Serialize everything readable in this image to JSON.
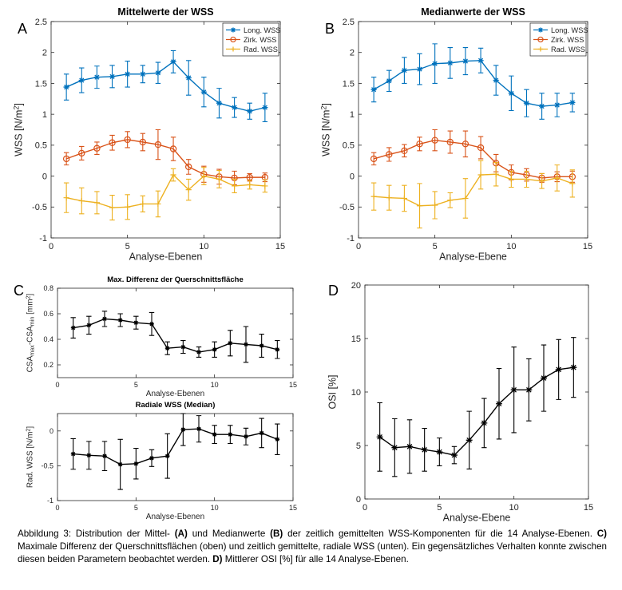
{
  "chart_data": [
    {
      "panel_letter": "A",
      "type": "line",
      "title": "Mittelwerte der WSS",
      "xlabel": "Analyse-Ebenen",
      "ylabel": "WSS [N/m²]",
      "xlim": [
        0,
        15
      ],
      "ylim": [
        -1,
        2.5
      ],
      "xticks": [
        0,
        5,
        10,
        15
      ],
      "yticks": [
        -1,
        -0.5,
        0,
        0.5,
        1,
        1.5,
        2,
        2.5
      ],
      "grid": false,
      "legend": "top-right",
      "x": [
        1,
        2,
        3,
        4,
        5,
        6,
        7,
        8,
        9,
        10,
        11,
        12,
        13,
        14
      ],
      "series": [
        {
          "name": "Long. WSS",
          "marker": "*",
          "color": "#0072BD",
          "values": [
            1.44,
            1.55,
            1.6,
            1.61,
            1.65,
            1.65,
            1.67,
            1.85,
            1.59,
            1.36,
            1.18,
            1.11,
            1.05,
            1.11
          ],
          "error": [
            0.21,
            0.2,
            0.18,
            0.18,
            0.21,
            0.14,
            0.17,
            0.18,
            0.28,
            0.24,
            0.24,
            0.16,
            0.13,
            0.23
          ]
        },
        {
          "name": "Zirk. WSS",
          "marker": "o",
          "color": "#D95319",
          "values": [
            0.28,
            0.37,
            0.45,
            0.54,
            0.59,
            0.55,
            0.51,
            0.44,
            0.15,
            0.03,
            -0.01,
            -0.03,
            -0.02,
            -0.02
          ],
          "error": [
            0.1,
            0.11,
            0.1,
            0.12,
            0.13,
            0.14,
            0.24,
            0.19,
            0.12,
            0.13,
            0.12,
            0.11,
            0.06,
            0.07
          ]
        },
        {
          "name": "Rad. WSS",
          "marker": "+",
          "color": "#EDB120",
          "values": [
            -0.35,
            -0.4,
            -0.43,
            -0.51,
            -0.5,
            -0.45,
            -0.45,
            0.02,
            -0.22,
            0.0,
            -0.05,
            -0.16,
            -0.14,
            -0.16
          ],
          "error": [
            0.24,
            0.21,
            0.18,
            0.2,
            0.2,
            0.13,
            0.21,
            0.1,
            0.17,
            0.14,
            0.14,
            0.11,
            0.07,
            0.1
          ]
        }
      ]
    },
    {
      "panel_letter": "B",
      "type": "line",
      "title": "Medianwerte der WSS",
      "xlabel": "Analyse-Ebene",
      "ylabel": "WSS [N/m²]",
      "xlim": [
        0,
        15
      ],
      "ylim": [
        -1,
        2.5
      ],
      "xticks": [
        0,
        5,
        10,
        15
      ],
      "yticks": [
        -1,
        -0.5,
        0,
        0.5,
        1,
        1.5,
        2,
        2.5
      ],
      "grid": false,
      "legend": "top-right",
      "x": [
        1,
        2,
        3,
        4,
        5,
        6,
        7,
        8,
        9,
        10,
        11,
        12,
        13,
        14
      ],
      "series": [
        {
          "name": "Long. WSS",
          "marker": "*",
          "color": "#0072BD",
          "values": [
            1.4,
            1.54,
            1.71,
            1.73,
            1.82,
            1.83,
            1.86,
            1.87,
            1.55,
            1.34,
            1.18,
            1.13,
            1.15,
            1.19
          ],
          "error": [
            0.2,
            0.17,
            0.21,
            0.25,
            0.32,
            0.25,
            0.22,
            0.2,
            0.24,
            0.28,
            0.22,
            0.21,
            0.19,
            0.15
          ]
        },
        {
          "name": "Zirk. WSS",
          "marker": "o",
          "color": "#D95319",
          "values": [
            0.28,
            0.35,
            0.41,
            0.52,
            0.58,
            0.55,
            0.52,
            0.46,
            0.21,
            0.06,
            0.02,
            -0.03,
            -0.01,
            -0.01
          ],
          "error": [
            0.1,
            0.11,
            0.1,
            0.11,
            0.17,
            0.18,
            0.21,
            0.18,
            0.14,
            0.12,
            0.1,
            0.07,
            0.08,
            0.09
          ]
        },
        {
          "name": "Rad. WSS",
          "marker": "+",
          "color": "#EDB120",
          "values": [
            -0.33,
            -0.35,
            -0.36,
            -0.48,
            -0.47,
            -0.39,
            -0.36,
            0.02,
            0.03,
            -0.05,
            -0.05,
            -0.08,
            -0.03,
            -0.12
          ],
          "error": [
            0.22,
            0.2,
            0.21,
            0.36,
            0.22,
            0.12,
            0.32,
            0.23,
            0.19,
            0.13,
            0.13,
            0.12,
            0.21,
            0.22
          ]
        }
      ]
    },
    {
      "panel_letter": "C",
      "type": "line",
      "title": "Max. Differenz der Querschnittsfläche",
      "xlabel": "Analyse-Ebenen",
      "ylabel": "CSAmax-CSAmin [mm²]",
      "xlim": [
        0,
        15
      ],
      "ylim": [
        0.1,
        0.8
      ],
      "xticks": [
        0,
        5,
        10,
        15
      ],
      "yticks": [
        0.2,
        0.4,
        0.6,
        0.8
      ],
      "grid": false,
      "x": [
        1,
        2,
        3,
        4,
        5,
        6,
        7,
        8,
        9,
        10,
        11,
        12,
        13,
        14
      ],
      "series": [
        {
          "marker": "*",
          "color": "#000000",
          "values": [
            0.49,
            0.51,
            0.56,
            0.55,
            0.53,
            0.52,
            0.33,
            0.34,
            0.3,
            0.32,
            0.37,
            0.36,
            0.35,
            0.32
          ],
          "error": [
            0.08,
            0.07,
            0.06,
            0.05,
            0.05,
            0.09,
            0.05,
            0.05,
            0.04,
            0.06,
            0.1,
            0.14,
            0.09,
            0.07
          ]
        }
      ]
    },
    {
      "panel_letter": "",
      "type": "line",
      "title": "Radiale WSS (Median)",
      "xlabel": "Analyse-Ebenen",
      "ylabel": "Rad. WSS [N/m²]",
      "xlim": [
        0,
        15
      ],
      "ylim": [
        -1,
        0.25
      ],
      "xticks": [
        0,
        5,
        10,
        15
      ],
      "yticks": [
        -1,
        -0.5,
        0
      ],
      "grid": false,
      "x": [
        1,
        2,
        3,
        4,
        5,
        6,
        7,
        8,
        9,
        10,
        11,
        12,
        13,
        14
      ],
      "series": [
        {
          "marker": "*",
          "color": "#000000",
          "values": [
            -0.33,
            -0.35,
            -0.36,
            -0.48,
            -0.47,
            -0.39,
            -0.36,
            0.02,
            0.03,
            -0.05,
            -0.05,
            -0.08,
            -0.03,
            -0.12
          ],
          "error": [
            0.22,
            0.2,
            0.21,
            0.36,
            0.22,
            0.12,
            0.32,
            0.23,
            0.19,
            0.13,
            0.13,
            0.12,
            0.21,
            0.22
          ]
        }
      ]
    },
    {
      "panel_letter": "D",
      "type": "line",
      "title": "",
      "xlabel": "Analyse-Ebene",
      "ylabel": "OSI [%]",
      "xlim": [
        0,
        15
      ],
      "ylim": [
        0,
        20
      ],
      "xticks": [
        0,
        5,
        10,
        15
      ],
      "yticks": [
        0,
        5,
        10,
        15,
        20
      ],
      "grid": false,
      "x": [
        1,
        2,
        3,
        4,
        5,
        6,
        7,
        8,
        9,
        10,
        11,
        12,
        13,
        14
      ],
      "series": [
        {
          "marker": "*",
          "color": "#000000",
          "values": [
            5.8,
            4.8,
            4.9,
            4.6,
            4.4,
            4.1,
            5.5,
            7.1,
            8.9,
            10.2,
            10.2,
            11.3,
            12.1,
            12.3
          ],
          "error": [
            3.2,
            2.7,
            2.5,
            2.0,
            1.3,
            0.8,
            2.7,
            2.3,
            3.3,
            4.0,
            2.9,
            3.1,
            2.8,
            2.8
          ]
        }
      ]
    }
  ],
  "caption": {
    "t1": "Abbildung 3: Distribution der Mittel- ",
    "b1": "(A)",
    "t2": " und Medianwerte ",
    "b2": "(B)",
    "t3": " der zeitlich gemittelten WSS-Komponenten für die 14 Analyse-Ebenen. ",
    "b3": "C)",
    "t4": " Maximale Differenz der Querschnittsflächen (oben) und zeitlich gemittelte, radiale WSS (unten). Ein gegensätzliches Verhalten konnte zwischen diesen beiden Parametern beobachtet werden. ",
    "b4": "D)",
    "t5": " Mittlerer OSI [%] für alle 14 Analyse-Ebenen."
  }
}
